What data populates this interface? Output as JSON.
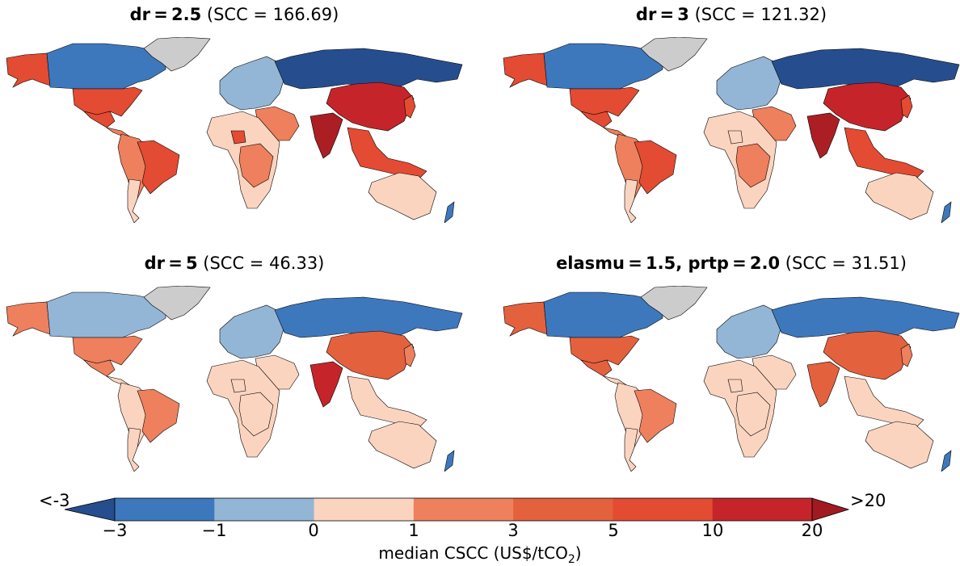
{
  "panels": [
    {
      "bold": "dr = 2.5",
      "rest": " (SCC = 166.69)",
      "fills": {
        "usa": "#e34b33",
        "canada": "#3d78bd",
        "alaska": "#e34b33",
        "greenland": "#cccccc",
        "mexico": "#e34b33",
        "centralam": "#ee805d",
        "brazil": "#e34b33",
        "southam": "#ee805d",
        "cone": "#fbd4c0",
        "europe": "#93b6d6",
        "russia": "#264e8e",
        "africa": "#fbd4c0",
        "centralafr": "#ee805d",
        "nigeria": "#e34b33",
        "middleeast": "#ee805d",
        "india": "#ab1f24",
        "china": "#c5252a",
        "seasia": "#e34b33",
        "australia": "#fbd4c0",
        "japan": "#e34b33",
        "nz": "#3d78bd"
      }
    },
    {
      "bold": "dr = 3",
      "rest": " (SCC = 121.32)",
      "fills": {
        "usa": "#e34b33",
        "canada": "#3d78bd",
        "alaska": "#e34b33",
        "greenland": "#cccccc",
        "mexico": "#e34b33",
        "centralam": "#ee805d",
        "brazil": "#e34b33",
        "southam": "#ee805d",
        "cone": "#fbd4c0",
        "europe": "#93b6d6",
        "russia": "#264e8e",
        "africa": "#fbd4c0",
        "centralafr": "#ee805d",
        "nigeria": "#fbd4c0",
        "middleeast": "#ee805d",
        "india": "#ab1f24",
        "china": "#c5252a",
        "seasia": "#e34b33",
        "australia": "#fbd4c0",
        "japan": "#e34b33",
        "nz": "#3d78bd"
      }
    },
    {
      "bold": "dr = 5",
      "rest": " (SCC = 46.33)",
      "fills": {
        "usa": "#ee805d",
        "canada": "#93b6d6",
        "alaska": "#ee805d",
        "greenland": "#cccccc",
        "mexico": "#ee805d",
        "centralam": "#fbd4c0",
        "brazil": "#ee805d",
        "southam": "#fbd4c0",
        "cone": "#fbd4c0",
        "europe": "#93b6d6",
        "russia": "#3d78bd",
        "africa": "#fbd4c0",
        "centralafr": "#fbd4c0",
        "nigeria": "#fbd4c0",
        "middleeast": "#fbd4c0",
        "india": "#c5252a",
        "china": "#e4613e",
        "seasia": "#fbd4c0",
        "australia": "#fbd4c0",
        "japan": "#ee805d",
        "nz": "#3d78bd"
      }
    },
    {
      "bold": "elasmu = 1.5, prtp = 2.0",
      "rest": " (SCC = 31.51)",
      "fills": {
        "usa": "#e4613e",
        "canada": "#3d78bd",
        "alaska": "#e4613e",
        "greenland": "#cccccc",
        "mexico": "#e4613e",
        "centralam": "#fbd4c0",
        "brazil": "#ee805d",
        "southam": "#fbd4c0",
        "cone": "#fbd4c0",
        "europe": "#93b6d6",
        "russia": "#3d78bd",
        "africa": "#fbd4c0",
        "centralafr": "#fbd4c0",
        "nigeria": "#fbd4c0",
        "middleeast": "#fbd4c0",
        "india": "#e4613e",
        "china": "#e4613e",
        "seasia": "#fbd4c0",
        "australia": "#fbd4c0",
        "japan": "#ee805d",
        "nz": "#3d78bd"
      }
    }
  ],
  "colorbar": {
    "under_label": "<-3",
    "over_label": ">20",
    "ticks": [
      "−3",
      "−1",
      "0",
      "1",
      "3",
      "5",
      "10",
      "20"
    ],
    "bins": [
      "#3d78bd",
      "#93b6d6",
      "#fbd4c0",
      "#ee805d",
      "#e4613e",
      "#e34b33",
      "#c5252a"
    ],
    "under_color": "#264e8e",
    "over_color": "#a11a22",
    "title_main": "median CSCC (US$/tCO",
    "title_sub": "2",
    "title_end": ")"
  }
}
